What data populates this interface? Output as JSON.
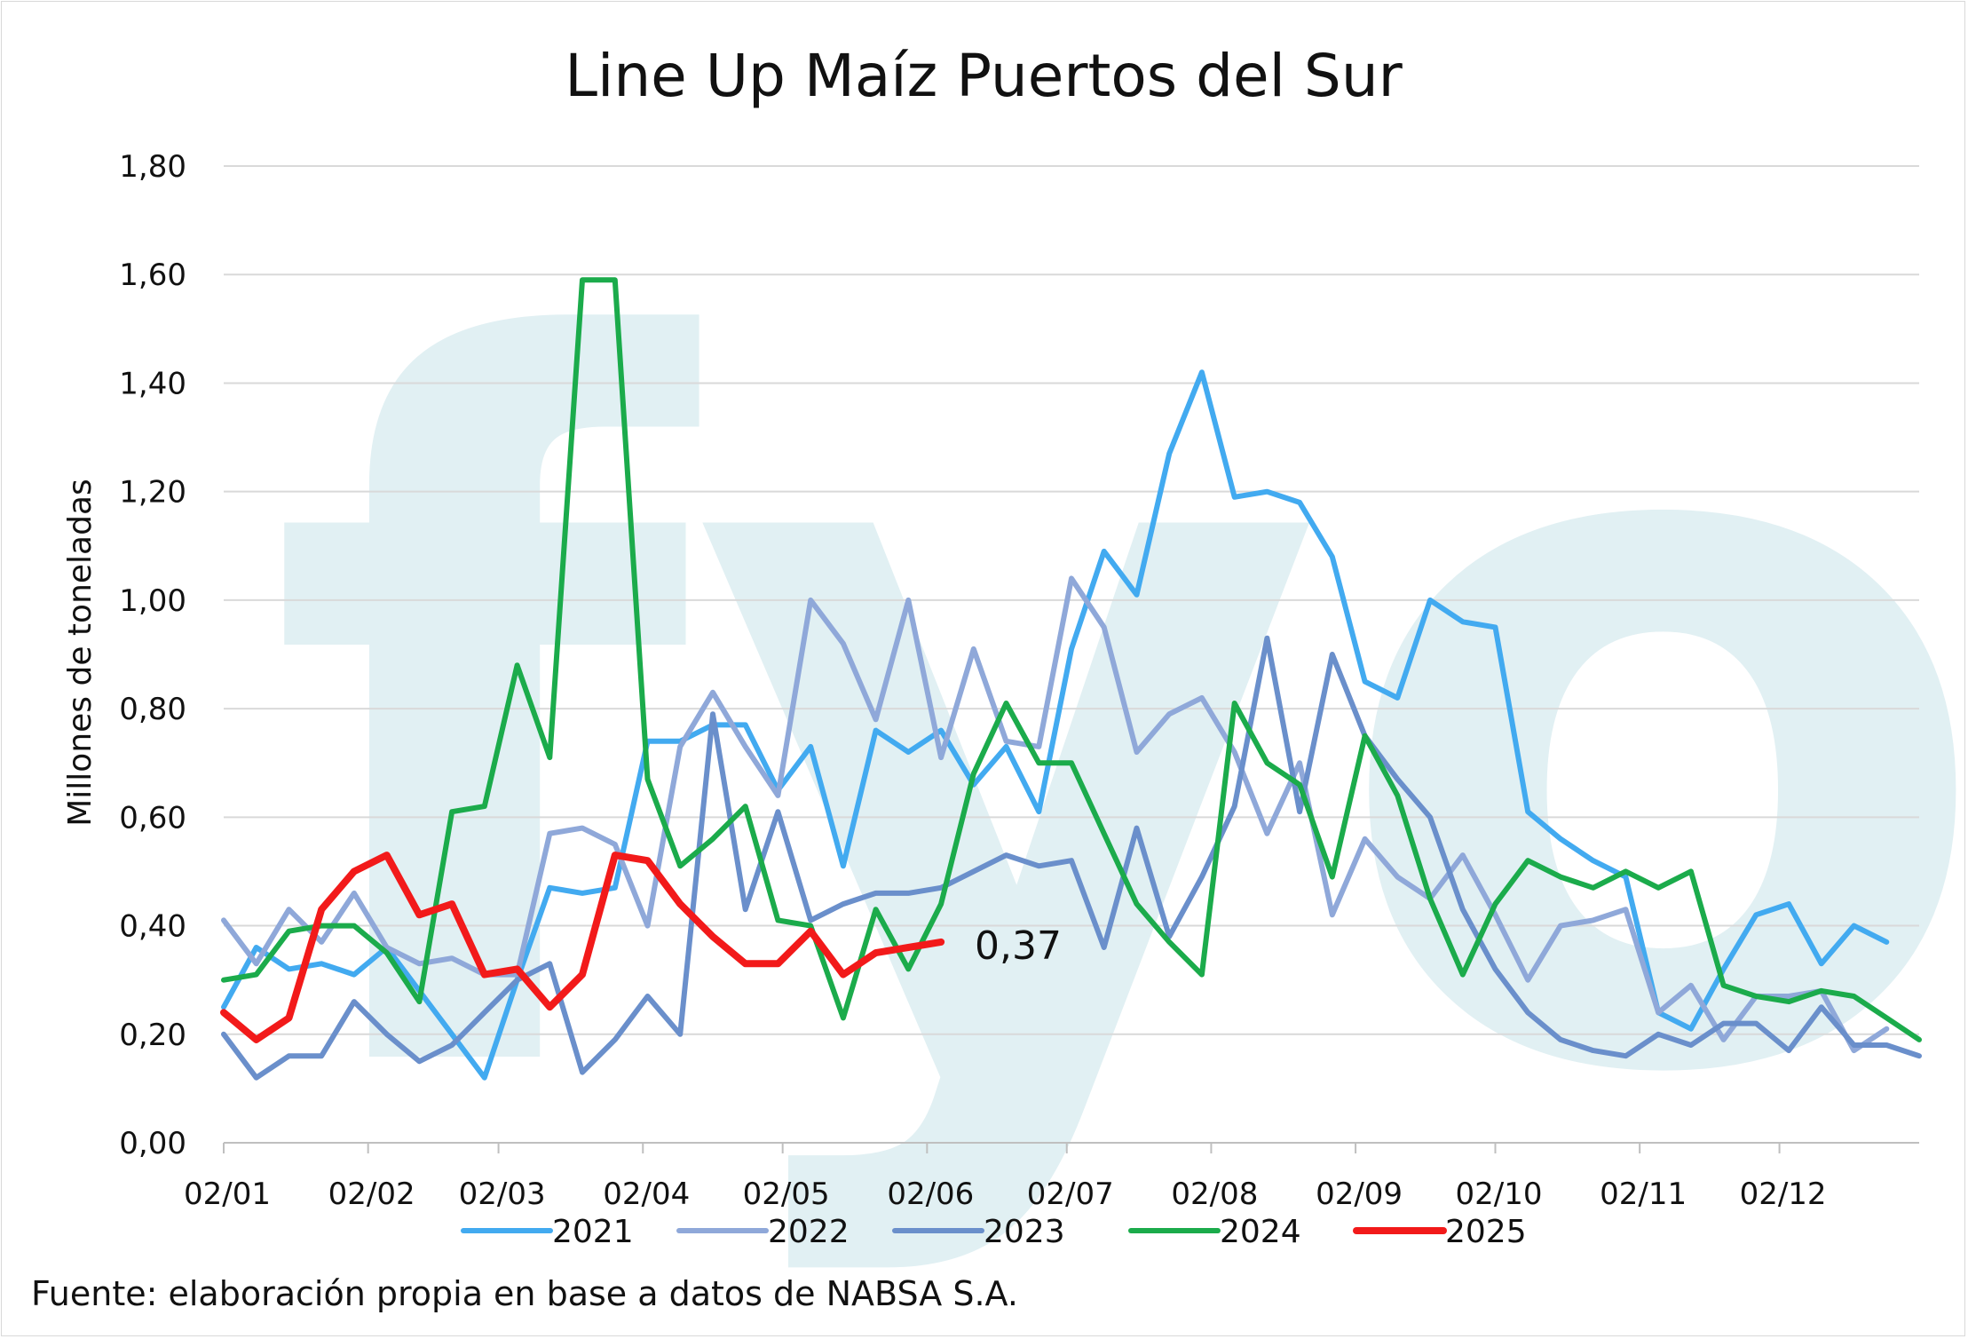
{
  "chart_data": {
    "type": "line",
    "title": "Line Up Maíz Puertos del Sur",
    "ylabel": "Millones de toneladas",
    "xlabel": "",
    "source": "Fuente: elaboración propia en base a datos de NABSA S.A.",
    "watermark": "fyo",
    "ylim": [
      0,
      1.8
    ],
    "yticks": [
      "0,00",
      "0,20",
      "0,40",
      "0,60",
      "0,80",
      "1,00",
      "1,20",
      "1,40",
      "1,60",
      "1,80"
    ],
    "xlim": [
      1,
      365
    ],
    "xticks": [
      {
        "day": 1,
        "label": "02/01"
      },
      {
        "day": 32,
        "label": "02/02"
      },
      {
        "day": 60,
        "label": "02/03"
      },
      {
        "day": 91,
        "label": "02/04"
      },
      {
        "day": 121,
        "label": "02/05"
      },
      {
        "day": 152,
        "label": "02/06"
      },
      {
        "day": 182,
        "label": "02/07"
      },
      {
        "day": 213,
        "label": "02/08"
      },
      {
        "day": 244,
        "label": "02/09"
      },
      {
        "day": 274,
        "label": "02/10"
      },
      {
        "day": 305,
        "label": "02/11"
      },
      {
        "day": 335,
        "label": "02/12"
      }
    ],
    "grid": true,
    "legend_position": "bottom",
    "end_label": {
      "series": "2025",
      "text": "0,37"
    },
    "series": [
      {
        "name": "2021",
        "color": "#42aaf0",
        "width": 6,
        "x": [
          1,
          8,
          15,
          22,
          29,
          36,
          43,
          50,
          57,
          64,
          71,
          78,
          85,
          92,
          99,
          106,
          113,
          120,
          127,
          134,
          141,
          148,
          155,
          162,
          169,
          176,
          183,
          190,
          197,
          204,
          211,
          218,
          225,
          232,
          239,
          246,
          253,
          260,
          267,
          274,
          281,
          288,
          295,
          302,
          309,
          316,
          323,
          330,
          337,
          344,
          351,
          358
        ],
        "y": [
          0.25,
          0.36,
          0.32,
          0.33,
          0.31,
          0.36,
          0.28,
          0.2,
          0.12,
          0.3,
          0.47,
          0.46,
          0.47,
          0.74,
          0.74,
          0.77,
          0.77,
          0.65,
          0.73,
          0.51,
          0.76,
          0.72,
          0.76,
          0.66,
          0.73,
          0.61,
          0.91,
          1.09,
          1.01,
          1.27,
          1.42,
          1.19,
          1.2,
          1.18,
          1.08,
          0.85,
          0.82,
          1.0,
          0.96,
          0.95,
          0.61,
          0.56,
          0.52,
          0.49,
          0.24,
          0.21,
          0.32,
          0.42,
          0.44,
          0.33,
          0.4,
          0.37
        ]
      },
      {
        "name": "2022",
        "color": "#8fa8d9",
        "width": 6,
        "x": [
          1,
          8,
          15,
          22,
          29,
          36,
          43,
          50,
          57,
          64,
          71,
          78,
          85,
          92,
          99,
          106,
          113,
          120,
          127,
          134,
          141,
          148,
          155,
          162,
          169,
          176,
          183,
          190,
          197,
          204,
          211,
          218,
          225,
          232,
          239,
          246,
          253,
          260,
          267,
          274,
          281,
          288,
          295,
          302,
          309,
          316,
          323,
          330,
          337,
          344,
          351,
          358
        ],
        "y": [
          0.41,
          0.33,
          0.43,
          0.37,
          0.46,
          0.36,
          0.33,
          0.34,
          0.31,
          0.31,
          0.57,
          0.58,
          0.55,
          0.4,
          0.73,
          0.83,
          0.73,
          0.64,
          1.0,
          0.92,
          0.78,
          1.0,
          0.71,
          0.91,
          0.74,
          0.73,
          1.04,
          0.95,
          0.72,
          0.79,
          0.82,
          0.72,
          0.57,
          0.7,
          0.42,
          0.56,
          0.49,
          0.45,
          0.53,
          0.42,
          0.3,
          0.4,
          0.41,
          0.43,
          0.24,
          0.29,
          0.19,
          0.27,
          0.27,
          0.28,
          0.17,
          0.21
        ]
      },
      {
        "name": "2023",
        "color": "#6a8fcb",
        "width": 6,
        "x": [
          1,
          8,
          15,
          22,
          29,
          36,
          43,
          50,
          57,
          64,
          71,
          78,
          85,
          92,
          99,
          106,
          113,
          120,
          127,
          134,
          141,
          148,
          155,
          162,
          169,
          176,
          183,
          190,
          197,
          204,
          211,
          218,
          225,
          232,
          239,
          246,
          253,
          260,
          267,
          274,
          281,
          288,
          295,
          302,
          309,
          316,
          323,
          330,
          337,
          344,
          351,
          358,
          365
        ],
        "y": [
          0.2,
          0.12,
          0.16,
          0.16,
          0.26,
          0.2,
          0.15,
          0.18,
          0.24,
          0.3,
          0.33,
          0.13,
          0.19,
          0.27,
          0.2,
          0.79,
          0.43,
          0.61,
          0.41,
          0.44,
          0.46,
          0.46,
          0.47,
          0.5,
          0.53,
          0.51,
          0.52,
          0.36,
          0.58,
          0.38,
          0.49,
          0.62,
          0.93,
          0.61,
          0.9,
          0.75,
          0.67,
          0.6,
          0.43,
          0.32,
          0.24,
          0.19,
          0.17,
          0.16,
          0.2,
          0.18,
          0.22,
          0.22,
          0.17,
          0.25,
          0.18,
          0.18,
          0.16
        ]
      },
      {
        "name": "2024",
        "color": "#1bab4b",
        "width": 6,
        "x": [
          1,
          8,
          15,
          22,
          29,
          36,
          43,
          50,
          57,
          64,
          71,
          78,
          85,
          92,
          99,
          106,
          113,
          120,
          127,
          134,
          141,
          148,
          155,
          162,
          169,
          176,
          183,
          190,
          197,
          204,
          211,
          218,
          225,
          232,
          239,
          246,
          253,
          260,
          267,
          274,
          281,
          288,
          295,
          302,
          309,
          316,
          323,
          330,
          337,
          344,
          351,
          358,
          365
        ],
        "y": [
          0.3,
          0.31,
          0.39,
          0.4,
          0.4,
          0.35,
          0.26,
          0.61,
          0.62,
          0.88,
          0.71,
          1.59,
          1.59,
          0.67,
          0.51,
          0.56,
          0.62,
          0.41,
          0.4,
          0.23,
          0.43,
          0.32,
          0.44,
          0.68,
          0.81,
          0.7,
          0.7,
          0.57,
          0.44,
          0.37,
          0.31,
          0.81,
          0.7,
          0.66,
          0.49,
          0.75,
          0.64,
          0.45,
          0.31,
          0.44,
          0.52,
          0.49,
          0.47,
          0.5,
          0.47,
          0.5,
          0.29,
          0.27,
          0.26,
          0.28,
          0.27,
          0.23,
          0.19
        ]
      },
      {
        "name": "2025",
        "color": "#f21a1a",
        "width": 8,
        "x": [
          1,
          8,
          15,
          22,
          29,
          36,
          43,
          50,
          57,
          64,
          71,
          78,
          85,
          92,
          99,
          106,
          113,
          120,
          127,
          134,
          141,
          148,
          155
        ],
        "y": [
          0.24,
          0.19,
          0.23,
          0.43,
          0.5,
          0.53,
          0.42,
          0.44,
          0.31,
          0.32,
          0.25,
          0.31,
          0.53,
          0.52,
          0.44,
          0.38,
          0.33,
          0.33,
          0.39,
          0.31,
          0.35,
          0.36,
          0.37
        ]
      }
    ]
  }
}
